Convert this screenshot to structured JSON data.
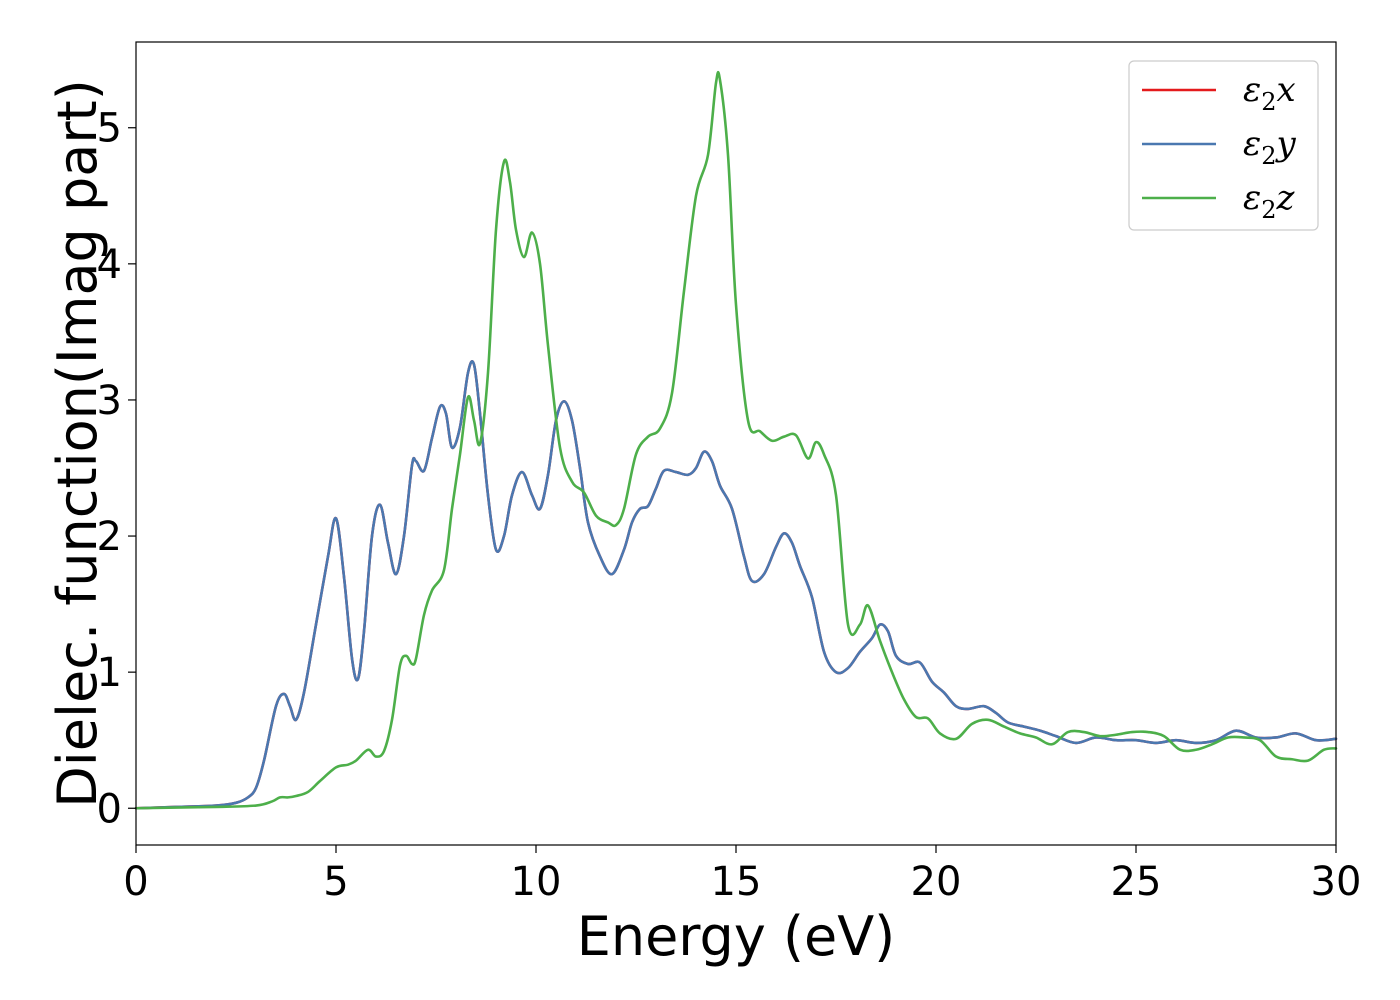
{
  "chart_data": {
    "type": "line",
    "title": "",
    "xlabel": "Energy (eV)",
    "ylabel": "Dielec. function(Imag part)",
    "xlim": [
      0,
      30
    ],
    "ylim": [
      -0.27,
      5.63
    ],
    "xticks": [
      0,
      5,
      10,
      15,
      20,
      25,
      30
    ],
    "yticks": [
      0,
      1,
      2,
      3,
      4,
      5
    ],
    "grid": false,
    "legend_position": "top-right",
    "series": [
      {
        "name": "ε₂x",
        "legend_base": "ε",
        "legend_sub": "2",
        "legend_var": "x",
        "color": "#e41a1c",
        "x": [
          0,
          1,
          2,
          2.5,
          2.8,
          3.0,
          3.2,
          3.5,
          3.7,
          3.85,
          4.0,
          4.2,
          4.5,
          4.8,
          5.0,
          5.2,
          5.4,
          5.55,
          5.7,
          5.9,
          6.1,
          6.3,
          6.5,
          6.7,
          6.9,
          7.0,
          7.2,
          7.4,
          7.6,
          7.75,
          7.9,
          8.1,
          8.3,
          8.45,
          8.6,
          8.8,
          9.0,
          9.2,
          9.4,
          9.65,
          9.9,
          10.1,
          10.3,
          10.5,
          10.7,
          10.9,
          11.1,
          11.3,
          11.6,
          11.9,
          12.2,
          12.4,
          12.6,
          12.8,
          13.0,
          13.2,
          13.5,
          13.8,
          14.0,
          14.2,
          14.4,
          14.6,
          14.9,
          15.2,
          15.4,
          15.7,
          16.0,
          16.2,
          16.4,
          16.6,
          16.9,
          17.2,
          17.5,
          17.8,
          18.1,
          18.4,
          18.6,
          18.8,
          19.0,
          19.3,
          19.6,
          19.9,
          20.2,
          20.5,
          20.8,
          21.2,
          21.5,
          21.8,
          22.2,
          22.6,
          23.0,
          23.5,
          24.0,
          24.5,
          25.0,
          25.5,
          26.0,
          26.5,
          27.0,
          27.5,
          28.0,
          28.5,
          29.0,
          29.5,
          30.0
        ],
        "y": [
          0,
          0.01,
          0.02,
          0.04,
          0.08,
          0.15,
          0.35,
          0.75,
          0.84,
          0.75,
          0.65,
          0.85,
          1.35,
          1.85,
          2.13,
          1.7,
          1.1,
          0.95,
          1.3,
          2.0,
          2.23,
          1.95,
          1.72,
          2.0,
          2.52,
          2.55,
          2.48,
          2.72,
          2.95,
          2.9,
          2.65,
          2.8,
          3.2,
          3.26,
          2.9,
          2.3,
          1.9,
          2.0,
          2.3,
          2.47,
          2.3,
          2.2,
          2.45,
          2.85,
          2.99,
          2.85,
          2.5,
          2.1,
          1.85,
          1.72,
          1.9,
          2.1,
          2.2,
          2.22,
          2.35,
          2.48,
          2.47,
          2.45,
          2.5,
          2.62,
          2.55,
          2.37,
          2.2,
          1.85,
          1.67,
          1.72,
          1.92,
          2.02,
          1.95,
          1.78,
          1.55,
          1.15,
          1.0,
          1.03,
          1.15,
          1.25,
          1.35,
          1.3,
          1.12,
          1.06,
          1.07,
          0.93,
          0.85,
          0.75,
          0.73,
          0.75,
          0.7,
          0.63,
          0.6,
          0.57,
          0.53,
          0.48,
          0.52,
          0.5,
          0.5,
          0.48,
          0.5,
          0.48,
          0.5,
          0.57,
          0.52,
          0.52,
          0.55,
          0.5,
          0.51
        ]
      },
      {
        "name": "ε₂y",
        "legend_base": "ε",
        "legend_sub": "2",
        "legend_var": "y",
        "color": "#4a78b0",
        "x": [
          0,
          1,
          2,
          2.5,
          2.8,
          3.0,
          3.2,
          3.5,
          3.7,
          3.85,
          4.0,
          4.2,
          4.5,
          4.8,
          5.0,
          5.2,
          5.4,
          5.55,
          5.7,
          5.9,
          6.1,
          6.3,
          6.5,
          6.7,
          6.9,
          7.0,
          7.2,
          7.4,
          7.6,
          7.75,
          7.9,
          8.1,
          8.3,
          8.45,
          8.6,
          8.8,
          9.0,
          9.2,
          9.4,
          9.65,
          9.9,
          10.1,
          10.3,
          10.5,
          10.7,
          10.9,
          11.1,
          11.3,
          11.6,
          11.9,
          12.2,
          12.4,
          12.6,
          12.8,
          13.0,
          13.2,
          13.5,
          13.8,
          14.0,
          14.2,
          14.4,
          14.6,
          14.9,
          15.2,
          15.4,
          15.7,
          16.0,
          16.2,
          16.4,
          16.6,
          16.9,
          17.2,
          17.5,
          17.8,
          18.1,
          18.4,
          18.6,
          18.8,
          19.0,
          19.3,
          19.6,
          19.9,
          20.2,
          20.5,
          20.8,
          21.2,
          21.5,
          21.8,
          22.2,
          22.6,
          23.0,
          23.5,
          24.0,
          24.5,
          25.0,
          25.5,
          26.0,
          26.5,
          27.0,
          27.5,
          28.0,
          28.5,
          29.0,
          29.5,
          30.0
        ],
        "y": [
          0,
          0.01,
          0.02,
          0.04,
          0.08,
          0.15,
          0.35,
          0.75,
          0.84,
          0.75,
          0.65,
          0.85,
          1.35,
          1.85,
          2.13,
          1.7,
          1.1,
          0.95,
          1.3,
          2.0,
          2.23,
          1.95,
          1.72,
          2.0,
          2.52,
          2.55,
          2.48,
          2.72,
          2.95,
          2.9,
          2.65,
          2.8,
          3.2,
          3.26,
          2.9,
          2.3,
          1.9,
          2.0,
          2.3,
          2.47,
          2.3,
          2.2,
          2.45,
          2.85,
          2.99,
          2.85,
          2.5,
          2.1,
          1.85,
          1.72,
          1.9,
          2.1,
          2.2,
          2.22,
          2.35,
          2.48,
          2.47,
          2.45,
          2.5,
          2.62,
          2.55,
          2.37,
          2.2,
          1.85,
          1.67,
          1.72,
          1.92,
          2.02,
          1.95,
          1.78,
          1.55,
          1.15,
          1.0,
          1.03,
          1.15,
          1.25,
          1.35,
          1.3,
          1.12,
          1.06,
          1.07,
          0.93,
          0.85,
          0.75,
          0.73,
          0.75,
          0.7,
          0.63,
          0.6,
          0.57,
          0.53,
          0.48,
          0.52,
          0.5,
          0.5,
          0.48,
          0.5,
          0.48,
          0.5,
          0.57,
          0.52,
          0.52,
          0.55,
          0.5,
          0.51
        ]
      },
      {
        "name": "ε₂z",
        "legend_base": "ε",
        "legend_sub": "2",
        "legend_var": "z",
        "color": "#4daf4a",
        "x": [
          0,
          1,
          2,
          3.0,
          3.4,
          3.6,
          3.8,
          4.0,
          4.3,
          4.6,
          5.0,
          5.3,
          5.5,
          5.8,
          6.0,
          6.2,
          6.4,
          6.6,
          6.75,
          6.9,
          7.0,
          7.2,
          7.4,
          7.7,
          7.9,
          8.1,
          8.3,
          8.45,
          8.6,
          8.8,
          9.0,
          9.2,
          9.35,
          9.5,
          9.7,
          9.9,
          10.1,
          10.3,
          10.6,
          10.9,
          11.2,
          11.5,
          11.8,
          12.0,
          12.2,
          12.5,
          12.8,
          13.1,
          13.4,
          13.7,
          14.0,
          14.3,
          14.5,
          14.6,
          14.8,
          15.0,
          15.3,
          15.6,
          15.9,
          16.2,
          16.5,
          16.8,
          17.0,
          17.2,
          17.5,
          17.8,
          18.1,
          18.3,
          18.6,
          18.9,
          19.2,
          19.5,
          19.8,
          20.1,
          20.5,
          20.9,
          21.3,
          21.7,
          22.1,
          22.5,
          22.9,
          23.3,
          23.7,
          24.1,
          24.5,
          24.9,
          25.3,
          25.7,
          26.1,
          26.5,
          26.9,
          27.3,
          27.7,
          28.1,
          28.5,
          28.9,
          29.3,
          29.7,
          30.0
        ],
        "y": [
          0,
          0.005,
          0.01,
          0.02,
          0.05,
          0.08,
          0.08,
          0.09,
          0.12,
          0.2,
          0.3,
          0.32,
          0.35,
          0.43,
          0.38,
          0.42,
          0.65,
          1.05,
          1.12,
          1.06,
          1.1,
          1.42,
          1.6,
          1.75,
          2.2,
          2.6,
          3.02,
          2.85,
          2.68,
          3.2,
          4.25,
          4.75,
          4.6,
          4.25,
          4.05,
          4.23,
          4.0,
          3.4,
          2.65,
          2.4,
          2.32,
          2.15,
          2.1,
          2.08,
          2.2,
          2.6,
          2.73,
          2.79,
          3.05,
          3.8,
          4.5,
          4.8,
          5.33,
          5.35,
          4.8,
          3.7,
          2.85,
          2.77,
          2.7,
          2.73,
          2.74,
          2.57,
          2.69,
          2.6,
          2.3,
          1.35,
          1.35,
          1.49,
          1.23,
          1.0,
          0.8,
          0.67,
          0.66,
          0.55,
          0.51,
          0.62,
          0.65,
          0.6,
          0.55,
          0.52,
          0.47,
          0.56,
          0.56,
          0.53,
          0.54,
          0.56,
          0.56,
          0.53,
          0.43,
          0.43,
          0.47,
          0.52,
          0.52,
          0.5,
          0.38,
          0.36,
          0.35,
          0.43,
          0.44
        ]
      }
    ]
  }
}
